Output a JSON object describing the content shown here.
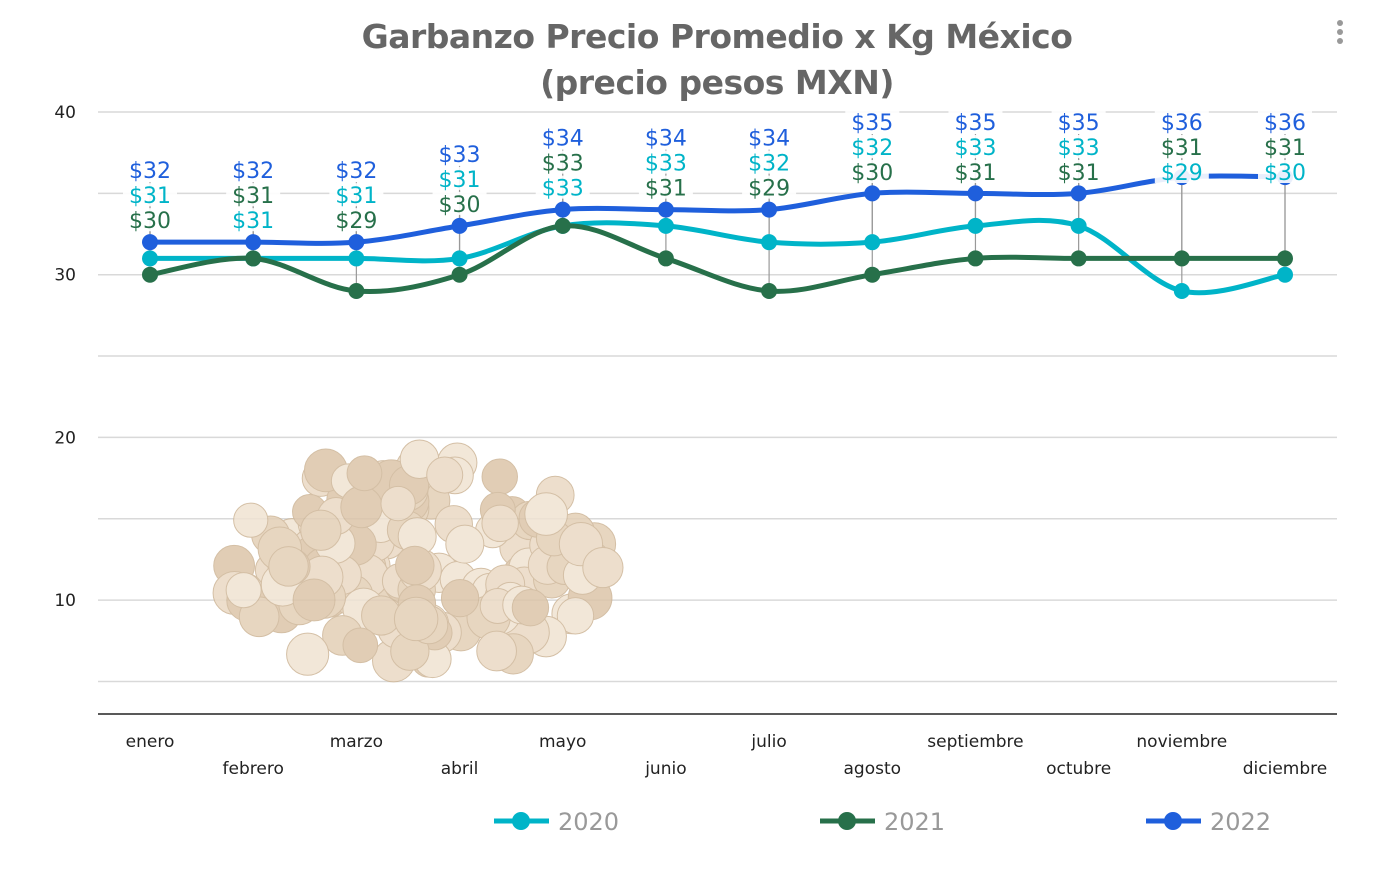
{
  "chart_data": {
    "type": "line",
    "title_line1": "Garbanzo Precio Promedio x Kg México",
    "title_line2": "(precio pesos MXN)",
    "categories": [
      "enero",
      "febrero",
      "marzo",
      "abril",
      "mayo",
      "junio",
      "julio",
      "agosto",
      "septiembre",
      "octubre",
      "noviembre",
      "diciembre"
    ],
    "series": [
      {
        "name": "2020",
        "color": "#00b4c8",
        "values": [
          31,
          31,
          31,
          31,
          33,
          33,
          32,
          32,
          33,
          33,
          29,
          30
        ]
      },
      {
        "name": "2021",
        "color": "#27704a",
        "values": [
          30,
          31,
          29,
          30,
          33,
          31,
          29,
          30,
          31,
          31,
          31,
          31
        ]
      },
      {
        "name": "2022",
        "color": "#1f5fdc",
        "values": [
          32,
          32,
          32,
          33,
          34,
          34,
          34,
          35,
          35,
          35,
          36,
          36
        ]
      }
    ],
    "data_label_prefix": "$",
    "yticks": [
      10,
      20,
      30,
      40
    ],
    "ylim": [
      3,
      40
    ],
    "grid": true,
    "legend": "bottom",
    "smooth": true
  },
  "menu_icon": "more-vertical-icon",
  "decoration": "chickpeas-image"
}
